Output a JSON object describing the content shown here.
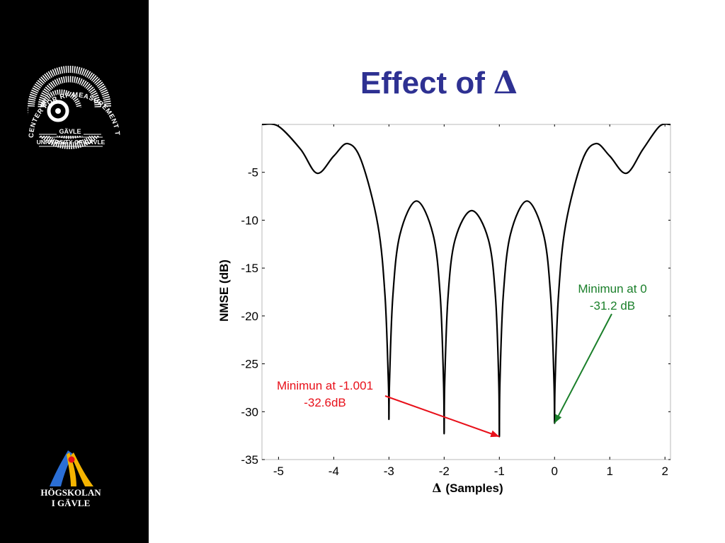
{
  "slide": {
    "title": "Effect of",
    "title_symbol": "Δ"
  },
  "sidebar": {
    "logo_top": {
      "ring_text": "CENTER FOR RF MEASUREMENT TECHNOLOGY",
      "city": "GÄVLE",
      "university": "UNIVERSITY OF GÄVLE"
    },
    "logo_bottom": {
      "line1": "HÖGSKOLAN",
      "line2": "I GÄVLE"
    }
  },
  "colors": {
    "title": "#2e3192",
    "red_annotation": "#e8101a",
    "green_annotation": "#1a7f2a",
    "sidebar": "#000000",
    "curve": "#000000"
  },
  "chart_data": {
    "type": "line",
    "title": "",
    "xlabel": "(Samples)",
    "xlabel_symbol": "Δ",
    "ylabel": "NMSE  (dB)",
    "xlim": [
      -5.3,
      2.1
    ],
    "ylim": [
      -35,
      0
    ],
    "xticks": [
      -5,
      -4,
      -3,
      -2,
      -1,
      0,
      1,
      2
    ],
    "yticks": [
      -5,
      -10,
      -15,
      -20,
      -25,
      -30,
      -35
    ],
    "grid": false,
    "series": [
      {
        "x": [
          -5.3,
          -5.0,
          -4.6,
          -4.3,
          -4.0,
          -3.75,
          -3.5,
          -3.2,
          -3.07,
          -3.01,
          -3.0,
          -2.99,
          -2.93,
          -2.8,
          -2.5,
          -2.2,
          -2.07,
          -2.01,
          -2.0,
          -1.99,
          -1.93,
          -1.8,
          -1.5,
          -1.2,
          -1.07,
          -1.01,
          -1.0,
          -0.99,
          -0.93,
          -0.8,
          -0.5,
          -0.2,
          -0.07,
          -0.01,
          0.0,
          0.01,
          0.07,
          0.2,
          0.5,
          0.75,
          1.0,
          1.3,
          1.6,
          1.9,
          2.1
        ],
        "y": [
          0,
          -0.2,
          -2.6,
          -5.1,
          -3.3,
          -2.0,
          -3.8,
          -10.5,
          -18,
          -27,
          -30.8,
          -27,
          -18,
          -11.5,
          -8.0,
          -11.5,
          -18,
          -27,
          -32.3,
          -27,
          -18,
          -12.0,
          -9.0,
          -12.0,
          -18,
          -27,
          -32.6,
          -27,
          -18,
          -11.5,
          -8.0,
          -11.5,
          -18,
          -27,
          -31.2,
          -27,
          -18,
          -10.5,
          -3.8,
          -2.0,
          -3.3,
          -5.1,
          -2.6,
          -0.2,
          0
        ]
      }
    ],
    "annotations": [
      {
        "lines": [
          "Minimun at -1.001",
          "-32.6dB"
        ],
        "color": "red",
        "target": [
          -1.0,
          -32.6
        ]
      },
      {
        "lines": [
          "Minimun at 0",
          "-31.2 dB"
        ],
        "color": "green",
        "target": [
          0.0,
          -31.2
        ]
      }
    ]
  }
}
